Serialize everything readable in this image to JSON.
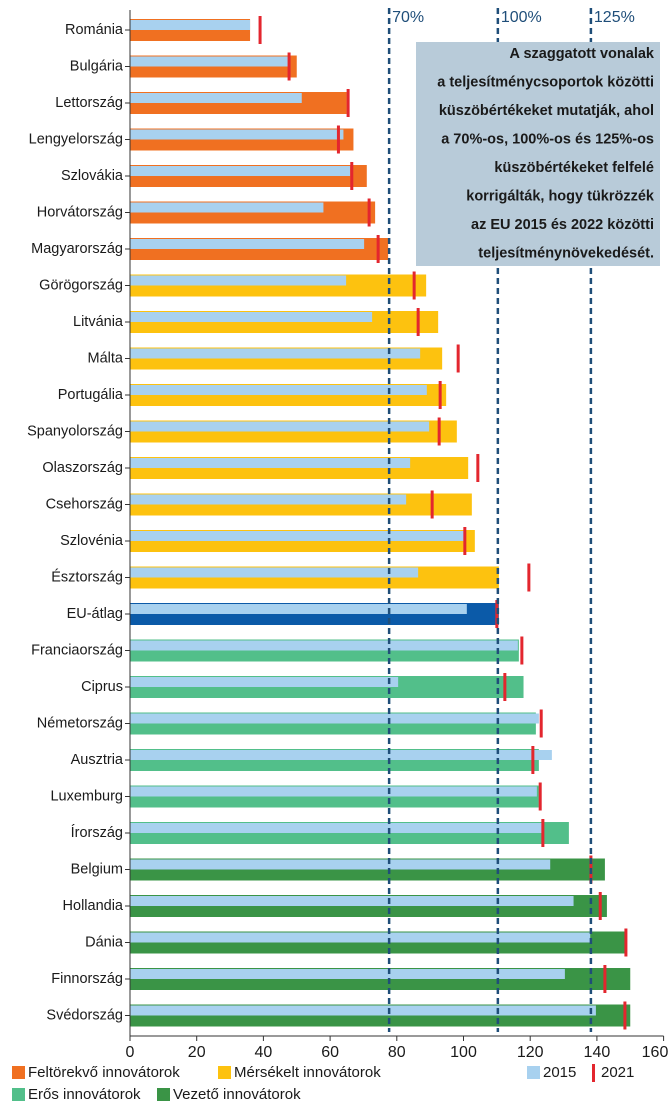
{
  "chart_data": {
    "type": "bar",
    "categories": [
      "Románia",
      "Bulgária",
      "Lettország",
      "Lengyelország",
      "Szlovákia",
      "Horvátország",
      "Magyarország",
      "Görögország",
      "Litvánia",
      "Málta",
      "Portugália",
      "Spanyolország",
      "Olaszország",
      "Csehország",
      "Szlovénia",
      "Észtország",
      "EU-átlag",
      "Franciaország",
      "Ciprus",
      "Németország",
      "Ausztria",
      "Luxemburg",
      "Írország",
      "Belgium",
      "Hollandia",
      "Dánia",
      "Finnország",
      "Svédország"
    ],
    "values": [
      36,
      50,
      65,
      67,
      71,
      73.5,
      77.4,
      88.8,
      92.4,
      93.6,
      94.8,
      98,
      101.4,
      102.5,
      103.4,
      110.6,
      110.6,
      116.6,
      118,
      121.7,
      122.6,
      122.6,
      131.6,
      142.4,
      143,
      148.4,
      150,
      150
    ],
    "bar_colors": [
      "#f07021",
      "#f07021",
      "#f07021",
      "#f07021",
      "#f07021",
      "#f07021",
      "#f07021",
      "#fdc20f",
      "#fdc20f",
      "#fdc20f",
      "#fdc20f",
      "#fdc20f",
      "#fdc20f",
      "#fdc20f",
      "#fdc20f",
      "#fdc20f",
      "#0b5aa8",
      "#52bf8a",
      "#52bf8a",
      "#52bf8a",
      "#52bf8a",
      "#52bf8a",
      "#52bf8a",
      "#3a9446",
      "#3a9446",
      "#3a9446",
      "#3a9446",
      "#3a9446"
    ],
    "groups": [
      {
        "name": "Feltörekvő innovátorok",
        "color": "#f07021"
      },
      {
        "name": "Mérsékelt innovátorok",
        "color": "#fdc20f"
      },
      {
        "name": "Erős innovátorok",
        "color": "#52bf8a"
      },
      {
        "name": "Vezető innovátorok",
        "color": "#3a9446"
      }
    ],
    "series": [
      {
        "name": "2015",
        "color": "#a8d1ef",
        "values": [
          36,
          47.4,
          51.5,
          64,
          66,
          58,
          70.2,
          64.8,
          72.6,
          87,
          89,
          89.7,
          84,
          82.8,
          100.2,
          86.4,
          101,
          116.3,
          80.4,
          122.6,
          126.5,
          122,
          123.8,
          126,
          133,
          138,
          130.4,
          139.7
        ]
      },
      {
        "name": "2021",
        "color": "#e3262e",
        "values": [
          39,
          47.7,
          65.4,
          62.5,
          66.5,
          71.7,
          74.4,
          85.2,
          86.4,
          98.4,
          93,
          92.7,
          104.3,
          90.6,
          100.4,
          119.6,
          110,
          117.5,
          112.4,
          123.3,
          120.8,
          123,
          123.8,
          138.2,
          141,
          148.7,
          142.4,
          148.4
        ]
      }
    ],
    "thresholds": [
      {
        "value": 77.7,
        "label": "70%"
      },
      {
        "value": 110.3,
        "label": "100%"
      },
      {
        "value": 138.2,
        "label": "125%"
      }
    ],
    "annotation": [
      "A szaggatott vonalak",
      "a teljesítménycsoportok közötti",
      "küszöbértékeket mutatják, ahol",
      "a 70%-os, 100%-os és 125%-os",
      "küszöbértékeket felfelé",
      "korrigálták, hogy tükrözzék",
      "az EU 2015 és 2022 közötti",
      "teljesítménynövekedését."
    ],
    "xlim": [
      0,
      160
    ],
    "xticks": [
      0,
      20,
      40,
      60,
      80,
      100,
      120,
      140,
      160
    ]
  }
}
